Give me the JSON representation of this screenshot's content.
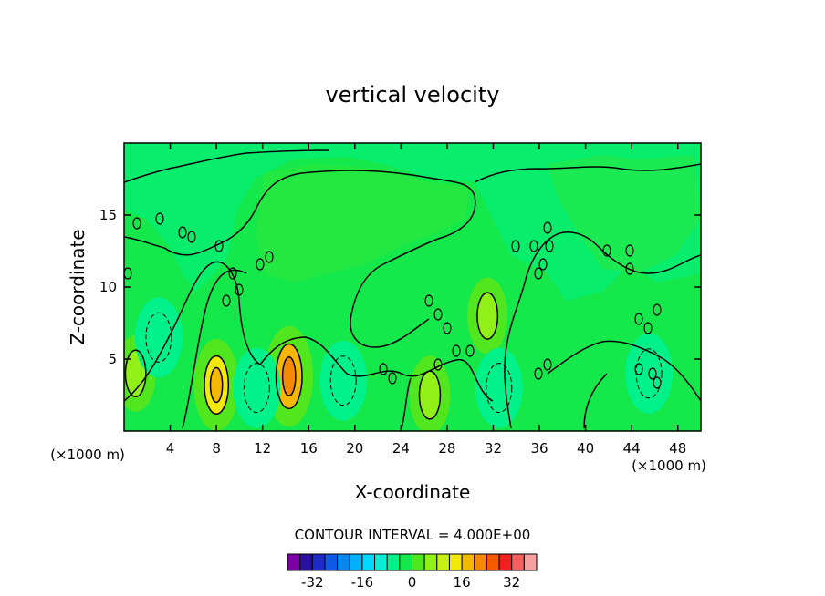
{
  "chart_data": {
    "type": "contour",
    "title": "vertical velocity",
    "xlabel": "X-coordinate",
    "ylabel": "Z-coordinate",
    "x_unit": "(×1000 m)",
    "z_unit": "(×1000 m)",
    "xlim": [
      0,
      50
    ],
    "ylim": [
      0,
      20
    ],
    "x_ticks": [
      4,
      8,
      12,
      16,
      20,
      24,
      28,
      32,
      36,
      40,
      44,
      48
    ],
    "y_ticks": [
      5,
      10,
      15
    ],
    "contour_interval_label": "CONTOUR INTERVAL = 4.000E+00",
    "contour_interval": 4,
    "colorbar": {
      "levels": [
        -36,
        -32,
        -28,
        -24,
        -20,
        -16,
        -12,
        -8,
        -4,
        0,
        4,
        8,
        12,
        16,
        20,
        24,
        28,
        32,
        36
      ],
      "colors": [
        "#7a00a6",
        "#2a0f9e",
        "#1f2bc9",
        "#1058e6",
        "#0a86f2",
        "#00b0ff",
        "#00d8ff",
        "#00f2d6",
        "#00f08a",
        "#14e84a",
        "#52e61e",
        "#90f018",
        "#c8f214",
        "#f2e80c",
        "#f5b800",
        "#f58a00",
        "#f55a00",
        "#f02020",
        "#f56060",
        "#f7a0a0"
      ],
      "tick_labels": [
        "-32",
        "-16",
        "0",
        "16",
        "32"
      ],
      "tick_values": [
        -32,
        -16,
        0,
        16,
        32
      ]
    },
    "field_regions": [
      {
        "label": "updraft",
        "x": 8.0,
        "z": 3.2,
        "value": 12
      },
      {
        "label": "updraft",
        "x": 14.3,
        "z": 3.8,
        "value": 16
      },
      {
        "label": "updraft",
        "x": 26.5,
        "z": 2.5,
        "value": 6
      },
      {
        "label": "updraft",
        "x": 31.5,
        "z": 8.0,
        "value": 5
      },
      {
        "label": "updraft",
        "x": 1.0,
        "z": 4.0,
        "value": 5
      },
      {
        "label": "downdraft",
        "x": 3.0,
        "z": 6.5,
        "value": -6
      },
      {
        "label": "downdraft",
        "x": 11.5,
        "z": 3.0,
        "value": -5
      },
      {
        "label": "downdraft",
        "x": 19.0,
        "z": 3.5,
        "value": -5
      },
      {
        "label": "downdraft",
        "x": 32.5,
        "z": 3.0,
        "value": -6
      },
      {
        "label": "downdraft",
        "x": 45.5,
        "z": 4.0,
        "value": -5
      }
    ]
  }
}
